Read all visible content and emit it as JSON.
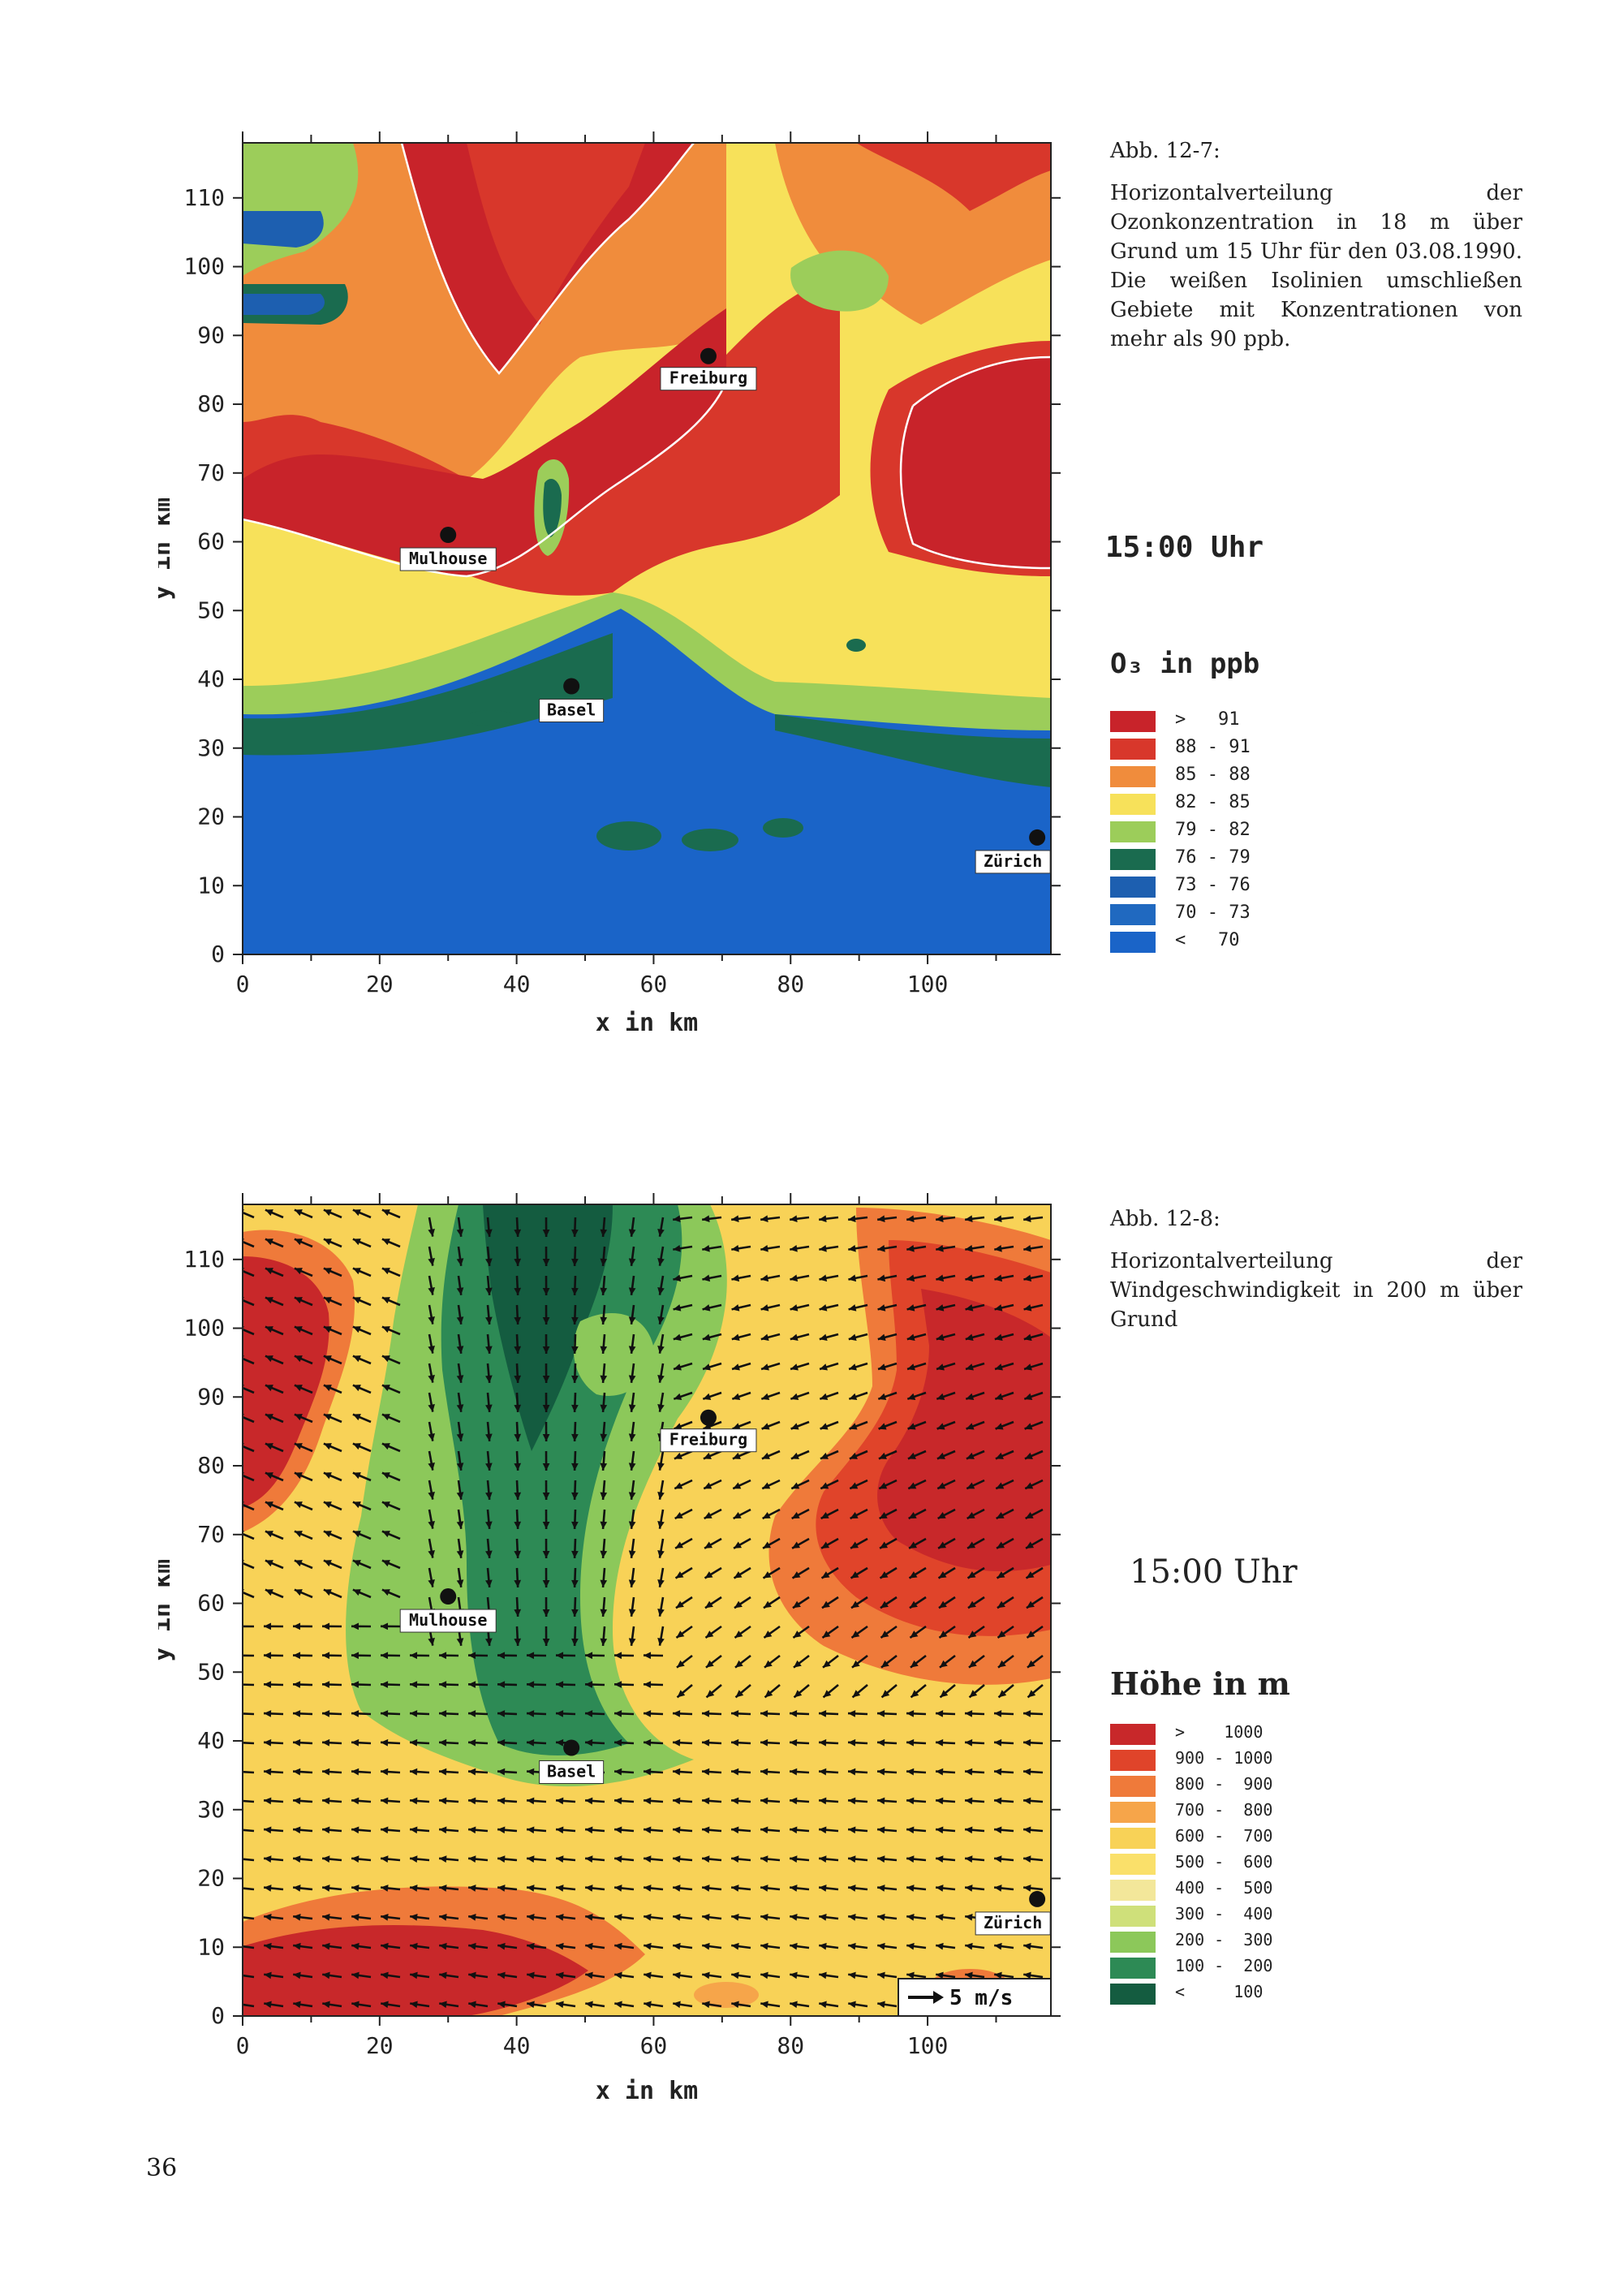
{
  "page_number": "36",
  "figure1": {
    "caption_number": "Abb. 12-7:",
    "caption_text": "Horizontalverteilung der Ozonkonzentration in 18 m über Grund um 15 Uhr für den 03.08.1990. Die weißen Isolinien umschließen Gebiete mit Konzentrationen von mehr als 90 ppb.",
    "time_label": "15:00 Uhr",
    "legend_title": "O₃ in ppb",
    "legend": [
      {
        "label": ">   91",
        "color": "#c8232a"
      },
      {
        "label": "88 - 91",
        "color": "#d8372b"
      },
      {
        "label": "85 - 88",
        "color": "#f08c3c"
      },
      {
        "label": "82 - 85",
        "color": "#f7e15a"
      },
      {
        "label": "79 - 82",
        "color": "#9ccd5a"
      },
      {
        "label": "76 - 79",
        "color": "#1a6b4f"
      },
      {
        "label": "73 - 76",
        "color": "#1d5fb0"
      },
      {
        "label": "70 - 73",
        "color": "#2069c0"
      },
      {
        "label": "<   70",
        "color": "#1a64c8"
      }
    ],
    "xlabel": "x in km",
    "ylabel": "y in km",
    "xticks": [
      "0",
      "20",
      "40",
      "60",
      "80",
      "100"
    ],
    "yticks": [
      "0",
      "10",
      "20",
      "30",
      "40",
      "50",
      "60",
      "70",
      "80",
      "90",
      "100",
      "110"
    ],
    "cities": [
      {
        "name": "Freiburg",
        "x": 68,
        "y": 87
      },
      {
        "name": "Mulhouse",
        "x": 30,
        "y": 61
      },
      {
        "name": "Basel",
        "x": 48,
        "y": 39
      },
      {
        "name": "Zürich",
        "x": 116,
        "y": 17
      }
    ]
  },
  "figure2": {
    "caption_number": "Abb. 12-8:",
    "caption_text": "Horizontalverteilung der Windgeschwindigkeit in 200 m über Grund",
    "time_label": "15:00 Uhr",
    "legend_title": "Höhe in m",
    "legend": [
      {
        "label": ">    1000",
        "color": "#c8282a"
      },
      {
        "label": "900 - 1000",
        "color": "#e0442a"
      },
      {
        "label": "800 -  900",
        "color": "#ef7a3a"
      },
      {
        "label": "700 -  800",
        "color": "#f6a54a"
      },
      {
        "label": "600 -  700",
        "color": "#f8d257"
      },
      {
        "label": "500 -  600",
        "color": "#fae06a"
      },
      {
        "label": "400 -  500",
        "color": "#f3e79a"
      },
      {
        "label": "300 -  400",
        "color": "#cfe07a"
      },
      {
        "label": "200 -  300",
        "color": "#8cc85a"
      },
      {
        "label": "100 -  200",
        "color": "#2d8a55"
      },
      {
        "label": "<     100",
        "color": "#145c40"
      }
    ],
    "scale_label": "5 m/s",
    "xlabel": "x in km",
    "ylabel": "y in km",
    "xticks": [
      "0",
      "20",
      "40",
      "60",
      "80",
      "100"
    ],
    "yticks": [
      "0",
      "10",
      "20",
      "30",
      "40",
      "50",
      "60",
      "70",
      "80",
      "90",
      "100",
      "110"
    ],
    "cities": [
      {
        "name": "Freiburg",
        "x": 68,
        "y": 87
      },
      {
        "name": "Mulhouse",
        "x": 30,
        "y": 61
      },
      {
        "name": "Basel",
        "x": 48,
        "y": 39
      },
      {
        "name": "Zürich",
        "x": 116,
        "y": 17
      }
    ]
  }
}
